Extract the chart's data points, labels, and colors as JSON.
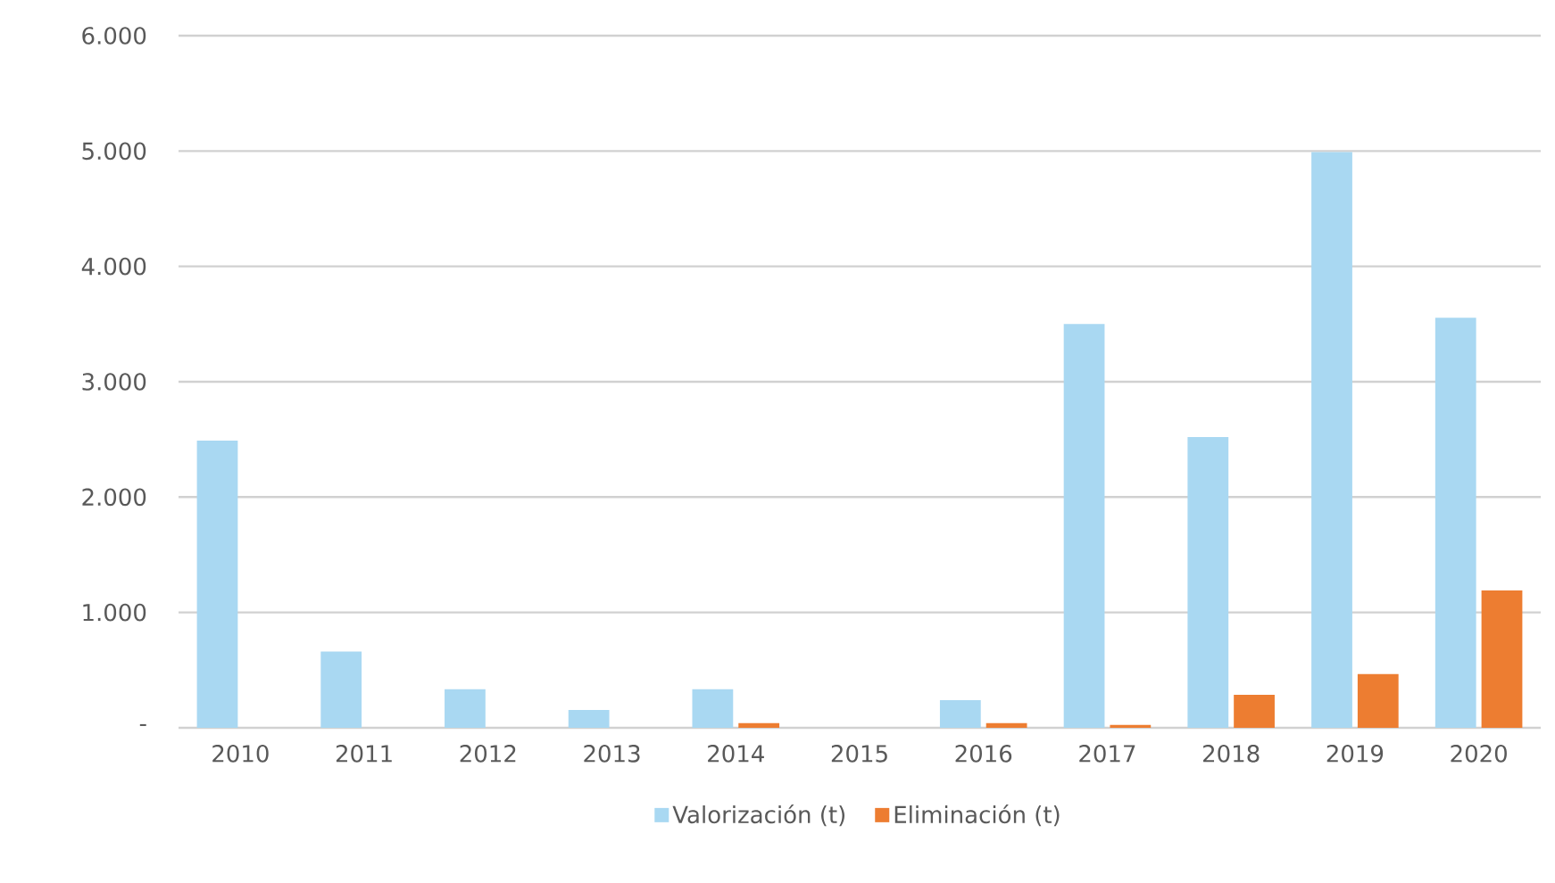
{
  "chart_data": {
    "type": "bar",
    "categories": [
      "2010",
      "2011",
      "2012",
      "2013",
      "2014",
      "2015",
      "2016",
      "2017",
      "2018",
      "2019",
      "2020"
    ],
    "series": [
      {
        "name": "Valorización (t)",
        "color": "#a9d8f2",
        "values": [
          2490,
          660,
          335,
          155,
          335,
          0,
          240,
          3500,
          2520,
          4990,
          3555
        ]
      },
      {
        "name": "Eliminación (t)",
        "color": "#ed7d31",
        "values": [
          0,
          0,
          0,
          0,
          40,
          0,
          40,
          25,
          285,
          465,
          1190
        ]
      }
    ],
    "ylim": [
      0,
      6000
    ],
    "yticks": [
      {
        "value": 0,
        "label": "-"
      },
      {
        "value": 1000,
        "label": "1.000"
      },
      {
        "value": 2000,
        "label": "2.000"
      },
      {
        "value": 3000,
        "label": "3.000"
      },
      {
        "value": 4000,
        "label": "4.000"
      },
      {
        "value": 5000,
        "label": "5.000"
      },
      {
        "value": 6000,
        "label": "6.000"
      }
    ],
    "grid": "y",
    "legend": "bottom"
  }
}
